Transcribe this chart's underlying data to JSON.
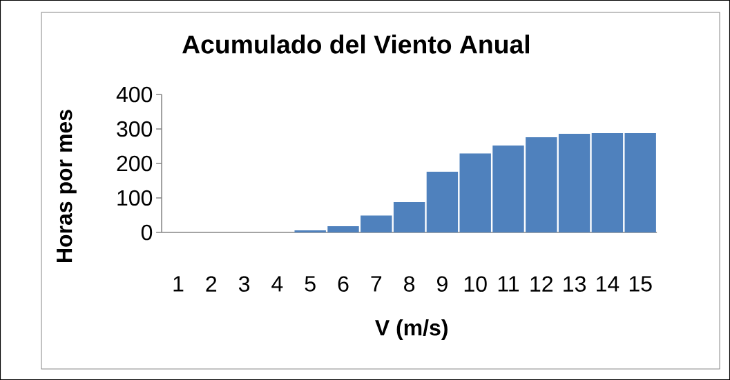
{
  "chart_data": {
    "type": "bar",
    "title": "Acumulado del Viento Anual",
    "xlabel": "V (m/s)",
    "ylabel": "Horas por mes",
    "categories": [
      "1",
      "2",
      "3",
      "4",
      "5",
      "6",
      "7",
      "8",
      "9",
      "10",
      "11",
      "12",
      "13",
      "14",
      "15"
    ],
    "values": [
      0,
      0,
      0,
      0,
      6,
      18,
      49,
      88,
      176,
      229,
      252,
      276,
      286,
      288,
      288
    ],
    "color": "#4f81bd",
    "ylim": [
      0,
      400
    ],
    "yticks": [
      0,
      100,
      200,
      300,
      400
    ]
  }
}
